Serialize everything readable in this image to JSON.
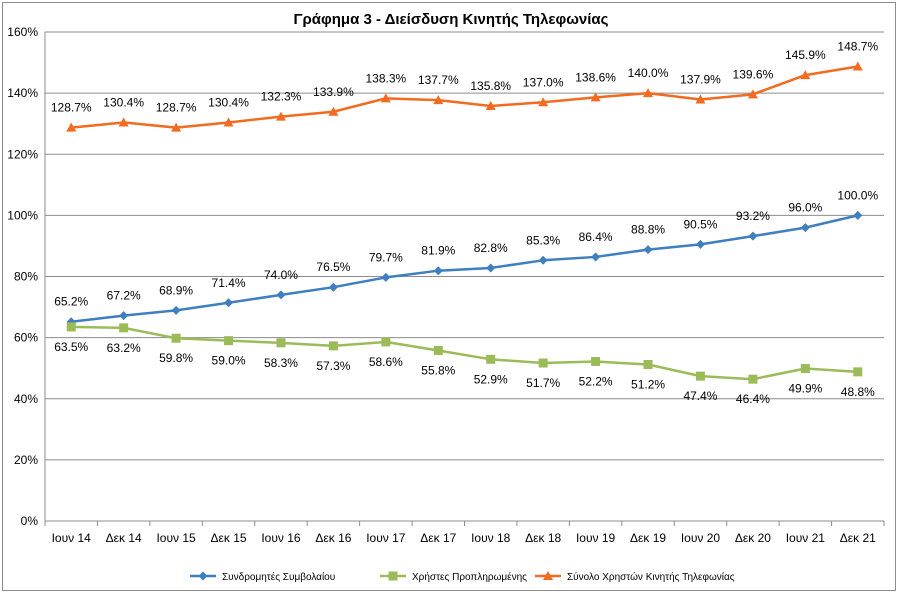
{
  "chart_data": {
    "type": "line",
    "title": "Γράφημα 3 - Διείσδυση Κινητής Τηλεφωνίας",
    "xlabel": "",
    "ylabel": "",
    "ylim": [
      0,
      160
    ],
    "yticks": [
      0,
      20,
      40,
      60,
      80,
      100,
      120,
      140,
      160
    ],
    "ytick_labels": [
      "0%",
      "20%",
      "40%",
      "60%",
      "80%",
      "100%",
      "120%",
      "140%",
      "160%"
    ],
    "grid": true,
    "legend_position": "bottom",
    "categories": [
      "Ιουν 14",
      "Δεκ 14",
      "Ιουν 15",
      "Δεκ 15",
      "Ιουν 16",
      "Δεκ 16",
      "Ιουν 17",
      "Δεκ 17",
      "Ιουν 18",
      "Δεκ 18",
      "Ιουν 19",
      "Δεκ 19",
      "Ιουν 20",
      "Δεκ 20",
      "Ιουν 21",
      "Δεκ 21"
    ],
    "series": [
      {
        "name": "Συνδρομητές Συμβολαίου",
        "color": "#3f7fbf",
        "marker": "diamond",
        "values": [
          65.2,
          67.2,
          68.9,
          71.4,
          74.0,
          76.5,
          79.7,
          81.9,
          82.8,
          85.3,
          86.4,
          88.8,
          90.5,
          93.2,
          96.0,
          100.0
        ],
        "labels": [
          "65.2%",
          "67.2%",
          "68.9%",
          "71.4%",
          "74.0%",
          "76.5%",
          "79.7%",
          "81.9%",
          "82.8%",
          "85.3%",
          "86.4%",
          "88.8%",
          "90.5%",
          "93.2%",
          "96.0%",
          "100.0%"
        ],
        "label_side": "above"
      },
      {
        "name": "Χρήστες Προπληρωμένης",
        "color": "#9bbb59",
        "marker": "square",
        "values": [
          63.5,
          63.2,
          59.8,
          59.0,
          58.3,
          57.3,
          58.6,
          55.8,
          52.9,
          51.7,
          52.2,
          51.2,
          47.4,
          46.4,
          49.9,
          48.8
        ],
        "labels": [
          "63.5%",
          "63.2%",
          "59.8%",
          "59.0%",
          "58.3%",
          "57.3%",
          "58.6%",
          "55.8%",
          "52.9%",
          "51.7%",
          "52.2%",
          "51.2%",
          "47.4%",
          "46.4%",
          "49.9%",
          "48.8%"
        ],
        "label_side": "below"
      },
      {
        "name": "Σύνολο Χρηστών Κινητής Τηλεφωνίας",
        "color": "#f26b21",
        "marker": "triangle",
        "values": [
          128.7,
          130.4,
          128.7,
          130.4,
          132.3,
          133.9,
          138.3,
          137.7,
          135.8,
          137.0,
          138.6,
          140.0,
          137.9,
          139.6,
          145.9,
          148.7
        ],
        "labels": [
          "128.7%",
          "130.4%",
          "128.7%",
          "130.4%",
          "132.3%",
          "133.9%",
          "138.3%",
          "137.7%",
          "135.8%",
          "137.0%",
          "138.6%",
          "140.0%",
          "137.9%",
          "139.6%",
          "145.9%",
          "148.7%"
        ],
        "label_side": "above"
      }
    ]
  }
}
